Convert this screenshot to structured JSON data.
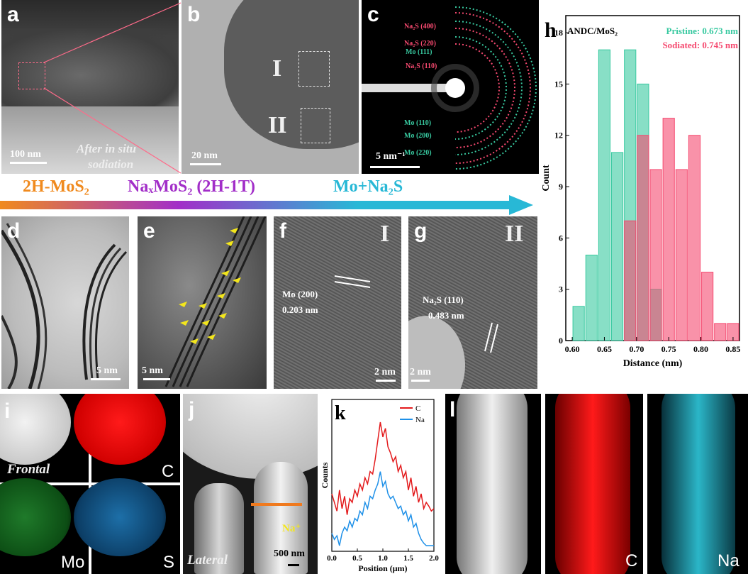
{
  "panels": {
    "a": {
      "letter": "a",
      "scale": "100 nm",
      "caption_line1": "After in situ",
      "caption_line2": "sodiation"
    },
    "b": {
      "letter": "b",
      "scale": "20 nm",
      "region1": "I",
      "region2": "II"
    },
    "c": {
      "letter": "c",
      "scale": "5 nm⁻¹",
      "rings": [
        "Na₂S (400)",
        "Na₂S (220)",
        "Mo (111)",
        "Na₂S (110)",
        "Mo (110)",
        "Mo (200)",
        "Mo (220)"
      ]
    },
    "d": {
      "letter": "d",
      "scale": "5 nm"
    },
    "e": {
      "letter": "e",
      "scale": "5 nm"
    },
    "f": {
      "letter": "f",
      "roman": "I",
      "plane": "Mo (200)",
      "spacing": "0.203 nm",
      "scale": "2 nm"
    },
    "g": {
      "letter": "g",
      "roman": "II",
      "plane": "Na₂S (110)",
      "spacing": "0.483 nm",
      "scale": "2 nm"
    },
    "i": {
      "letter": "i",
      "label_frontal": "Frontal",
      "elem_c": "C",
      "elem_mo": "Mo",
      "elem_s": "S"
    },
    "j": {
      "letter": "j",
      "ion": "Na⁺",
      "label_lateral": "Lateral",
      "scale": "500 nm"
    },
    "l": {
      "letter": "l",
      "elem_c": "C",
      "elem_na": "Na"
    }
  },
  "phases": {
    "p1": "2H-MoS₂",
    "p2": "NaₓMoS₂ (2H-1T)",
    "p3": "Mo+Na₂S"
  },
  "colors": {
    "pristine": "#38c9a0",
    "sodiated": "#f5496f",
    "orange": "#f08a1e",
    "purple": "#a22ec8",
    "cyan": "#28b8d6"
  },
  "chart_data": [
    {
      "panel": "h",
      "type": "bar",
      "title": "ANDC/MoS₂",
      "xlabel": "Distance (nm)",
      "ylabel": "Count",
      "xlim": [
        0.59,
        0.86
      ],
      "ylim": [
        0,
        19
      ],
      "xticks": [
        0.6,
        0.65,
        0.7,
        0.75,
        0.8,
        0.85
      ],
      "yticks": [
        0,
        3,
        6,
        9,
        12,
        15,
        18
      ],
      "bin_width": 0.02,
      "legend_position": "top-right",
      "series": [
        {
          "name": "Pristine: 0.673 nm",
          "color": "#38c9a0",
          "x": [
            0.61,
            0.63,
            0.65,
            0.67,
            0.69,
            0.71,
            0.73
          ],
          "values": [
            2,
            5,
            17,
            11,
            17,
            15,
            3
          ]
        },
        {
          "name": "Sodiated: 0.745 nm",
          "color": "#f5496f",
          "x": [
            0.69,
            0.71,
            0.73,
            0.75,
            0.77,
            0.79,
            0.81,
            0.83,
            0.85
          ],
          "values": [
            7,
            12,
            10,
            13,
            10,
            12,
            4,
            1,
            1
          ]
        }
      ]
    },
    {
      "panel": "k",
      "type": "line",
      "xlabel": "Position (μm)",
      "ylabel": "Counts",
      "xlim": [
        0,
        2
      ],
      "xticks": [
        0.0,
        0.5,
        1.0,
        1.5,
        2.0
      ],
      "legend_position": "top-right",
      "series": [
        {
          "name": "C",
          "color": "#e31a1c",
          "x": [
            0,
            0.05,
            0.1,
            0.15,
            0.2,
            0.25,
            0.3,
            0.35,
            0.4,
            0.45,
            0.5,
            0.55,
            0.6,
            0.65,
            0.7,
            0.75,
            0.8,
            0.85,
            0.9,
            0.95,
            1.0,
            1.05,
            1.1,
            1.15,
            1.2,
            1.25,
            1.3,
            1.35,
            1.4,
            1.45,
            1.5,
            1.55,
            1.6,
            1.65,
            1.7,
            1.75,
            1.8,
            1.85,
            1.9,
            1.95,
            2.0
          ],
          "values": [
            0.42,
            0.35,
            0.28,
            0.45,
            0.3,
            0.4,
            0.25,
            0.38,
            0.35,
            0.45,
            0.4,
            0.5,
            0.45,
            0.55,
            0.5,
            0.6,
            0.58,
            0.7,
            0.85,
            1.0,
            0.88,
            0.95,
            0.8,
            0.75,
            0.68,
            0.72,
            0.6,
            0.65,
            0.55,
            0.6,
            0.45,
            0.55,
            0.4,
            0.48,
            0.35,
            0.42,
            0.3,
            0.35,
            0.32,
            0.28,
            0.3
          ]
        },
        {
          "name": "Na",
          "color": "#1e90e8",
          "x": [
            0,
            0.05,
            0.1,
            0.15,
            0.2,
            0.25,
            0.3,
            0.35,
            0.4,
            0.45,
            0.5,
            0.55,
            0.6,
            0.65,
            0.7,
            0.75,
            0.8,
            0.85,
            0.9,
            0.95,
            1.0,
            1.05,
            1.1,
            1.15,
            1.2,
            1.25,
            1.3,
            1.35,
            1.4,
            1.45,
            1.5,
            1.55,
            1.6,
            1.65,
            1.7,
            1.75,
            1.8,
            1.85,
            1.9,
            1.95,
            2.0
          ],
          "values": [
            0.1,
            0.05,
            0.08,
            0.0,
            0.1,
            0.15,
            0.12,
            0.2,
            0.15,
            0.22,
            0.2,
            0.28,
            0.25,
            0.35,
            0.3,
            0.4,
            0.38,
            0.45,
            0.5,
            0.6,
            0.48,
            0.52,
            0.42,
            0.38,
            0.4,
            0.35,
            0.3,
            0.32,
            0.25,
            0.28,
            0.2,
            0.25,
            0.15,
            0.18,
            0.1,
            0.05,
            0.02,
            0.0,
            0.0,
            0.0,
            0.0
          ]
        }
      ]
    }
  ]
}
